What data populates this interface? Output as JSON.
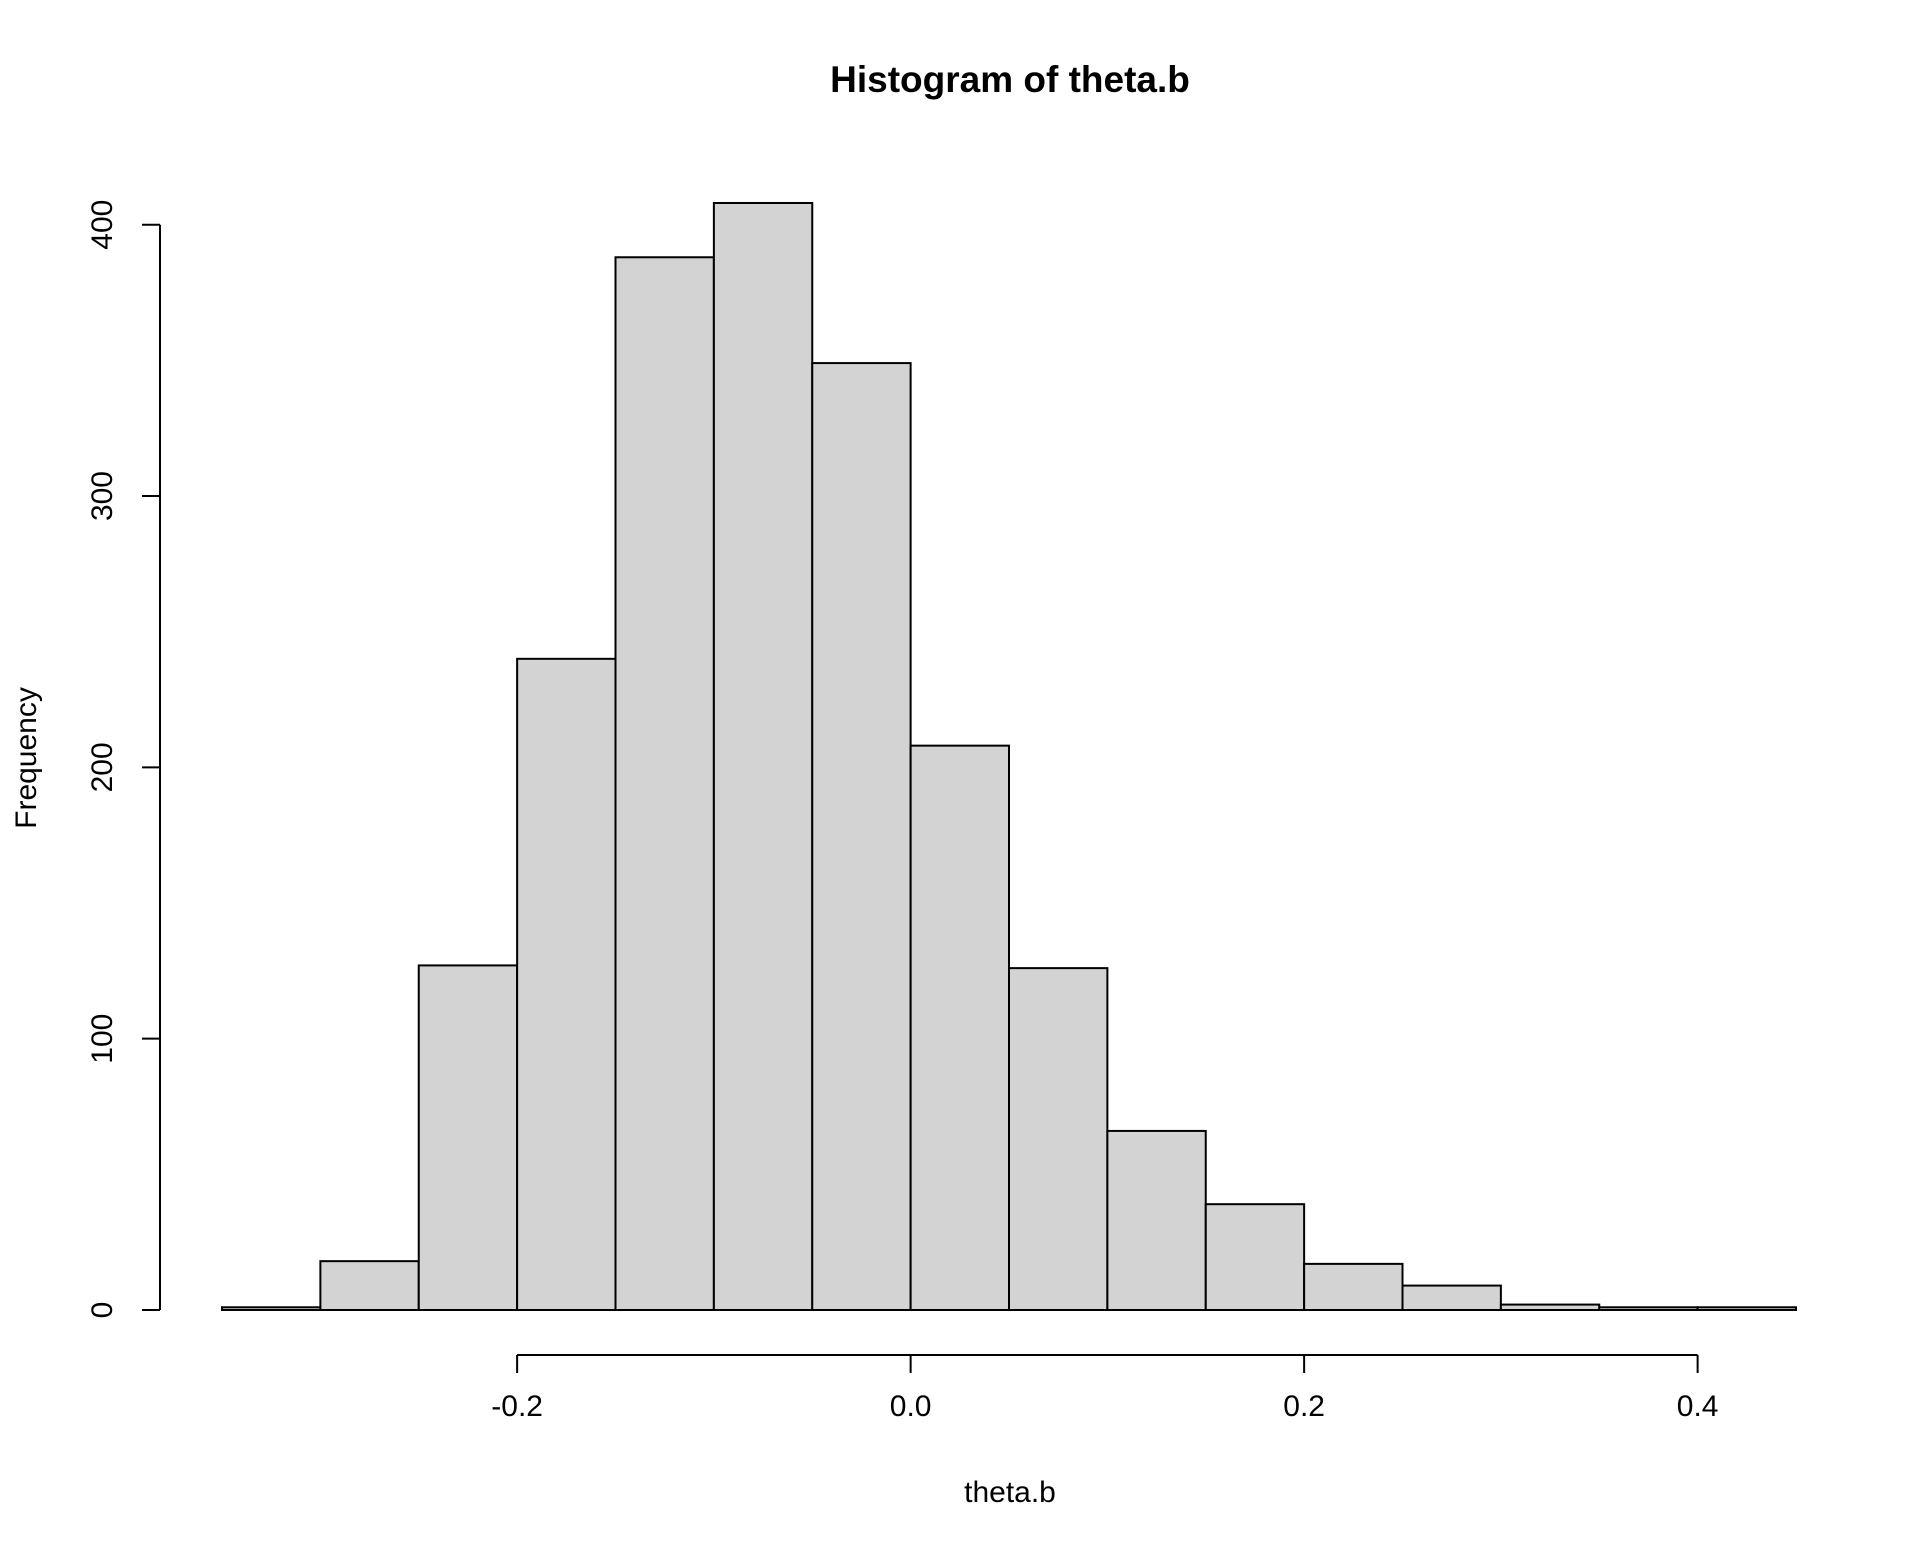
{
  "chart_data": {
    "type": "histogram",
    "title": "Histogram of theta.b",
    "xlabel": "theta.b",
    "ylabel": "Frequency",
    "bins": [
      {
        "start": -0.35,
        "end": -0.3,
        "count": 1
      },
      {
        "start": -0.3,
        "end": -0.25,
        "count": 18
      },
      {
        "start": -0.25,
        "end": -0.2,
        "count": 127
      },
      {
        "start": -0.2,
        "end": -0.15,
        "count": 240
      },
      {
        "start": -0.15,
        "end": -0.1,
        "count": 388
      },
      {
        "start": -0.1,
        "end": -0.05,
        "count": 408
      },
      {
        "start": -0.05,
        "end": 0.0,
        "count": 349
      },
      {
        "start": 0.0,
        "end": 0.05,
        "count": 208
      },
      {
        "start": 0.05,
        "end": 0.1,
        "count": 126
      },
      {
        "start": 0.1,
        "end": 0.15,
        "count": 66
      },
      {
        "start": 0.15,
        "end": 0.2,
        "count": 39
      },
      {
        "start": 0.2,
        "end": 0.25,
        "count": 17
      },
      {
        "start": 0.25,
        "end": 0.3,
        "count": 9
      },
      {
        "start": 0.3,
        "end": 0.35,
        "count": 2
      },
      {
        "start": 0.35,
        "end": 0.4,
        "count": 1
      },
      {
        "start": 0.4,
        "end": 0.45,
        "count": 1
      }
    ],
    "x_ticks": [
      -0.2,
      0.0,
      0.2,
      0.4
    ],
    "x_tick_labels": [
      "-0.2",
      "0.0",
      "0.2",
      "0.4"
    ],
    "y_ticks": [
      0,
      100,
      200,
      300,
      400
    ],
    "y_tick_labels": [
      "0",
      "100",
      "200",
      "300",
      "400"
    ],
    "xlim": [
      -0.35,
      0.45
    ],
    "ylim": [
      0,
      408
    ],
    "bar_fill": "#d3d3d3",
    "bar_stroke": "#000000",
    "grid": false,
    "legend": "none"
  }
}
